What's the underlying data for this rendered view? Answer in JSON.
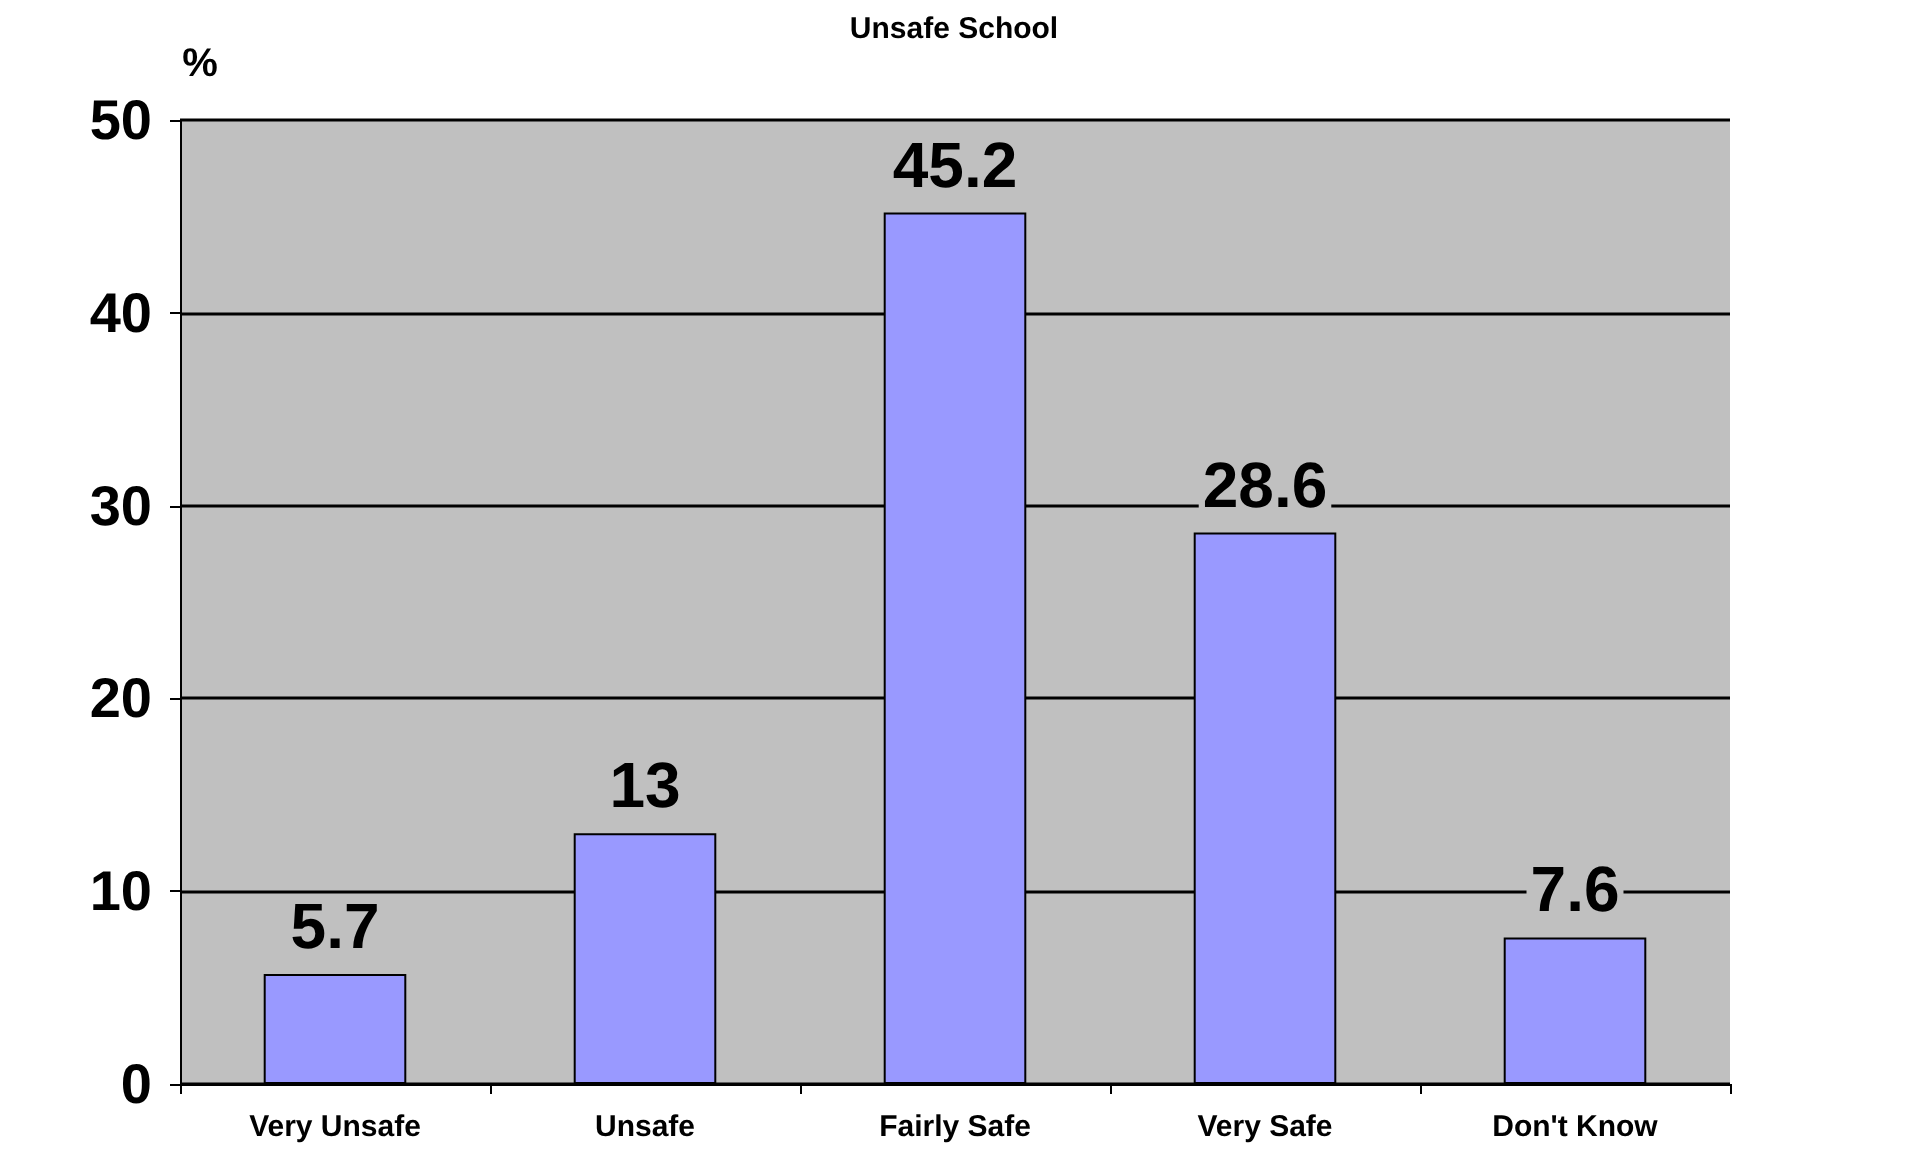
{
  "chart_data": {
    "type": "bar",
    "title": "Unsafe School",
    "ylabel": "%",
    "categories": [
      "Very Unsafe",
      "Unsafe",
      "Fairly Safe",
      "Very Safe",
      "Don't Know"
    ],
    "values": [
      5.7,
      13,
      45.2,
      28.6,
      7.6
    ],
    "color": "#9999ff",
    "ylim": [
      0,
      50
    ],
    "yticks": [
      0,
      10,
      20,
      30,
      40,
      50
    ],
    "grid": "y",
    "data_labels": true
  }
}
